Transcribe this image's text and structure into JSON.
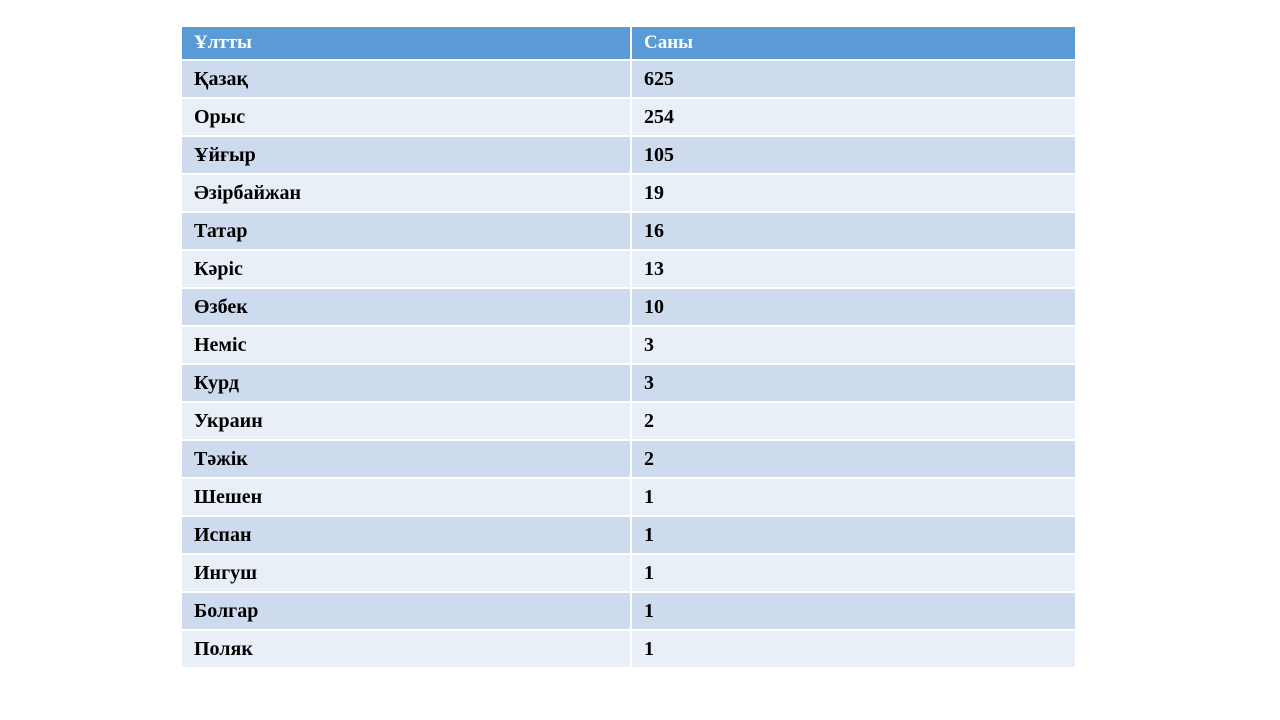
{
  "chart_data": {
    "type": "table",
    "columns": [
      "Ұлтты",
      "Саны"
    ],
    "rows": [
      [
        "Қазақ",
        "625"
      ],
      [
        "Орыс",
        "254"
      ],
      [
        "Ұйғыр",
        "105"
      ],
      [
        "Әзірбайжан",
        "19"
      ],
      [
        "Татар",
        "16"
      ],
      [
        "Кәріс",
        "13"
      ],
      [
        "Өзбек",
        "10"
      ],
      [
        "Неміс",
        "3"
      ],
      [
        "Курд",
        "3"
      ],
      [
        "Украин",
        "2"
      ],
      [
        "Тәжік",
        "2"
      ],
      [
        "Шешен",
        "1"
      ],
      [
        "Испан",
        "1"
      ],
      [
        "Ингуш",
        "1"
      ],
      [
        "Болгар",
        "1"
      ],
      [
        "Поляк",
        "1"
      ]
    ],
    "legend": "none",
    "grid": "white cell borders",
    "banding": "alternating rows"
  },
  "colors": {
    "header_bg": "#5B9BD5",
    "header_text": "#FFFFFF",
    "band_dark": "#CEDBEE",
    "band_light": "#E9EFF7",
    "body_text": "#000000",
    "page_bg": "#FFFFFF"
  }
}
